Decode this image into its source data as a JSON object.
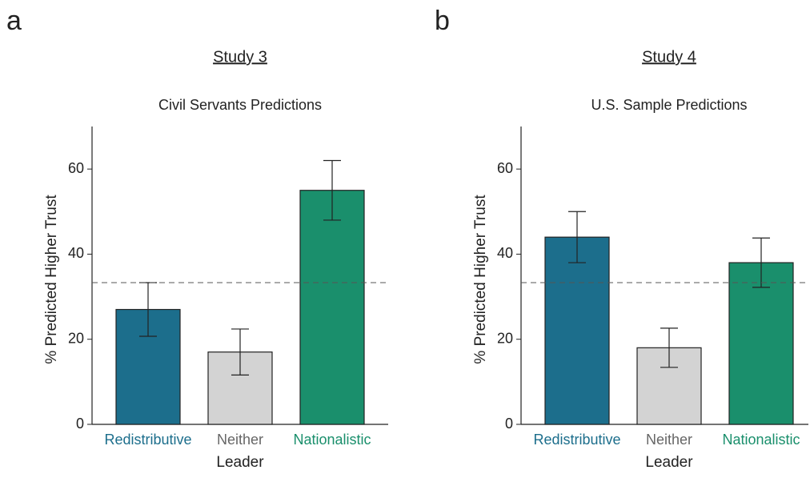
{
  "chart_data": [
    {
      "type": "bar",
      "panel_label": "a",
      "title": "Study 3",
      "subtitle": "Civil Servants Predictions",
      "xlabel": "Leader",
      "ylabel": "% Predicted Higher Trust",
      "categories": [
        "Redistributive",
        "Neither",
        "Nationalistic"
      ],
      "values": [
        27,
        17,
        55
      ],
      "errors": [
        6.3,
        5.4,
        7
      ],
      "colors": [
        "#1c6e8c",
        "#d3d3d3",
        "#1a8f6c"
      ],
      "label_colors": [
        "#1c6e8c",
        "#666666",
        "#1a8f6c"
      ],
      "ylim": [
        0,
        70
      ],
      "yticks": [
        0,
        20,
        40,
        60
      ],
      "reference_line": 33.3
    },
    {
      "type": "bar",
      "panel_label": "b",
      "title": "Study 4",
      "subtitle": "U.S. Sample Predictions",
      "xlabel": "Leader",
      "ylabel": "% Predicted Higher Trust",
      "categories": [
        "Redistributive",
        "Neither",
        "Nationalistic"
      ],
      "values": [
        44,
        18,
        38
      ],
      "errors": [
        6,
        4.6,
        5.8
      ],
      "colors": [
        "#1c6e8c",
        "#d3d3d3",
        "#1a8f6c"
      ],
      "label_colors": [
        "#1c6e8c",
        "#666666",
        "#1a8f6c"
      ],
      "ylim": [
        0,
        70
      ],
      "yticks": [
        0,
        20,
        40,
        60
      ],
      "reference_line": 33.3
    }
  ]
}
